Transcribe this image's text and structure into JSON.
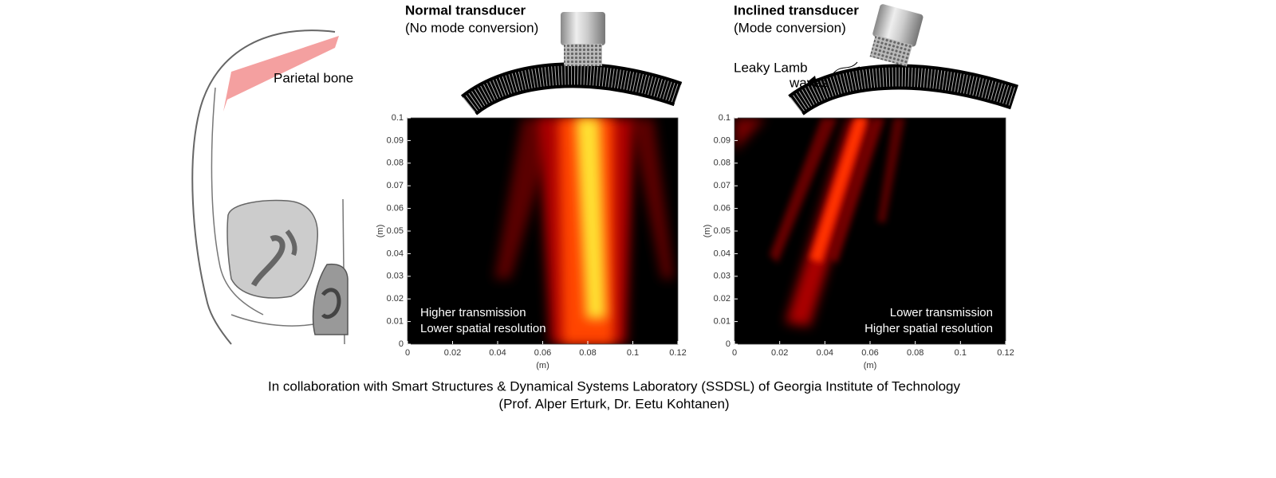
{
  "labels": {
    "parietal": "Parietal bone",
    "leaky_line1": "Leaky Lamb",
    "leaky_line2": "waves"
  },
  "panels": [
    {
      "title": "Normal transducer",
      "subtitle": "(No mode conversion)",
      "xlabel": "(m)",
      "ylabel": "(m)",
      "xlim": [
        0,
        0.12
      ],
      "ylim": [
        0,
        0.1
      ],
      "xticks": [
        0,
        0.02,
        0.04,
        0.06,
        0.08,
        0.1,
        0.12
      ],
      "yticks": [
        0,
        0.01,
        0.02,
        0.03,
        0.04,
        0.05,
        0.06,
        0.07,
        0.08,
        0.09,
        0.1
      ],
      "note_line1": "Higher transmission",
      "note_line2": "Lower spatial resolution"
    },
    {
      "title": "Inclined transducer",
      "subtitle": "(Mode conversion)",
      "xlabel": "(m)",
      "ylabel": "(m)",
      "xlim": [
        0,
        0.12
      ],
      "ylim": [
        0,
        0.1
      ],
      "xticks": [
        0,
        0.02,
        0.04,
        0.06,
        0.08,
        0.1,
        0.12
      ],
      "yticks": [
        0,
        0.01,
        0.02,
        0.03,
        0.04,
        0.05,
        0.06,
        0.07,
        0.08,
        0.09,
        0.1
      ],
      "note_line1": "Lower transmission",
      "note_line2": "Higher spatial resolution"
    }
  ],
  "footer": {
    "line1": "In collaboration with Smart Structures & Dynamical Systems Laboratory (SSDSL) of Georgia Institute of Technology",
    "line2": "(Prof. Alper Erturk, Dr. Eetu Kohtanen)"
  }
}
